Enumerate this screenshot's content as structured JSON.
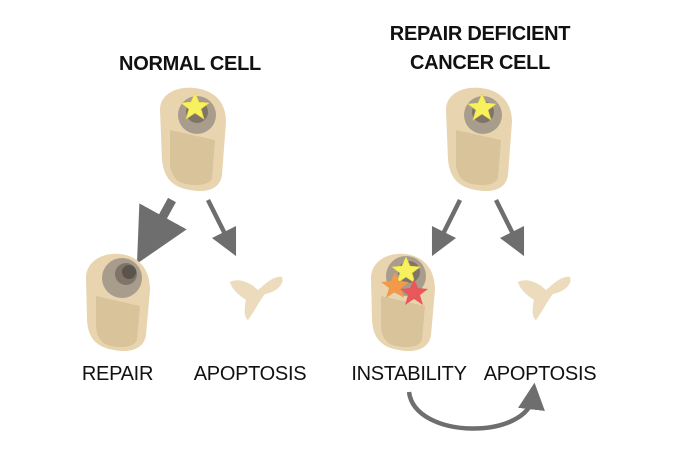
{
  "titles": {
    "left": "NORMAL CELL",
    "right_line1": "REPAIR DEFICIENT",
    "right_line2": "CANCER CELL"
  },
  "labels": {
    "repair": "REPAIR",
    "apoptosis_left": "APOPTOSIS",
    "instability": "INSTABILITY",
    "apoptosis_right": "APOPTOSIS"
  },
  "colors": {
    "cell_body": "#e8d5b0",
    "cell_inner": "#d9c39b",
    "nucleus_outer": "#a89c8c",
    "nucleus_inner": "#7f7467",
    "nucleolus": "#5b544c",
    "fragment": "#ecdcbd",
    "arrow": "#6e6e6e",
    "star_yellow": "#f7f15d",
    "star_orange": "#f2994a",
    "star_red": "#e8585a"
  }
}
